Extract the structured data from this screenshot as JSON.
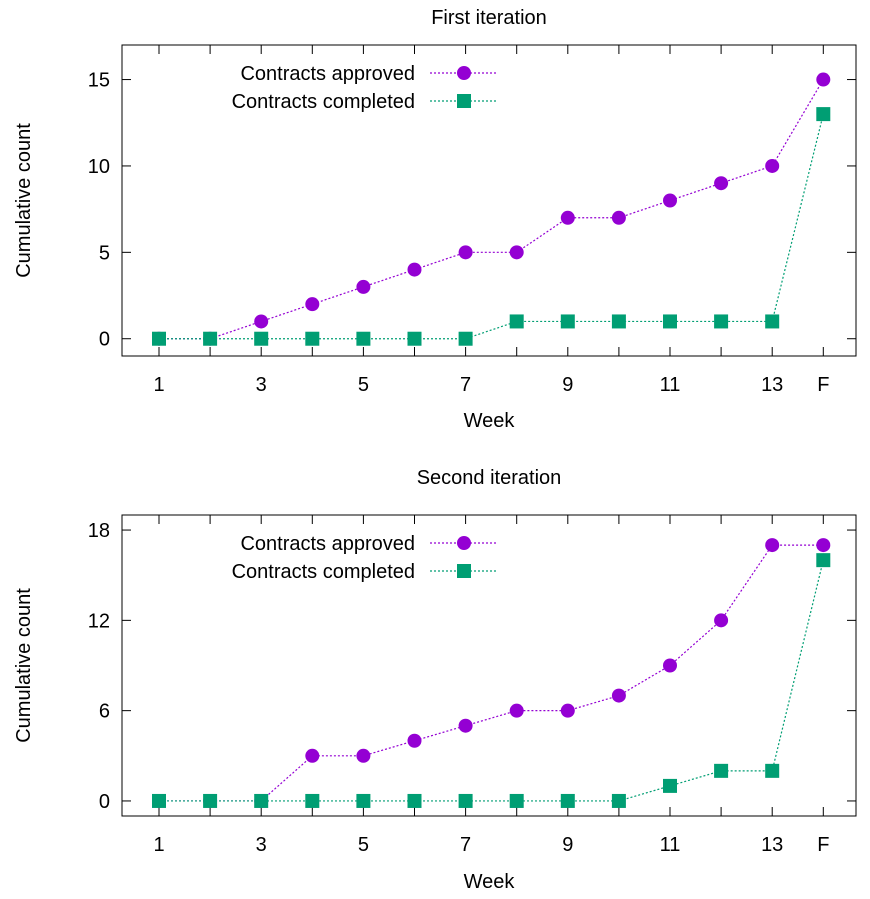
{
  "chart_data": [
    {
      "type": "line",
      "title": "First iteration",
      "xlabel": "Week",
      "ylabel": "Cumulative count",
      "categories": [
        "1",
        "2",
        "3",
        "4",
        "5",
        "6",
        "7",
        "8",
        "9",
        "10",
        "11",
        "12",
        "13",
        "F"
      ],
      "x_tick_labels": [
        "1",
        "3",
        "5",
        "7",
        "9",
        "11",
        "13",
        "F"
      ],
      "y_ticks": [
        0,
        5,
        10,
        15
      ],
      "ylim": [
        -1,
        17
      ],
      "legend_position": "top-right",
      "series": [
        {
          "name": "Contracts approved",
          "color": "#9400d3",
          "marker": "circle",
          "values": [
            0,
            0,
            1,
            2,
            3,
            4,
            5,
            5,
            7,
            7,
            8,
            9,
            10,
            15
          ]
        },
        {
          "name": "Contracts completed",
          "color": "#009e73",
          "marker": "square",
          "values": [
            0,
            0,
            0,
            0,
            0,
            0,
            0,
            1,
            1,
            1,
            1,
            1,
            1,
            13
          ]
        }
      ]
    },
    {
      "type": "line",
      "title": "Second iteration",
      "xlabel": "Week",
      "ylabel": "Cumulative count",
      "categories": [
        "1",
        "2",
        "3",
        "4",
        "5",
        "6",
        "7",
        "8",
        "9",
        "10",
        "11",
        "12",
        "13",
        "F"
      ],
      "x_tick_labels": [
        "1",
        "3",
        "5",
        "7",
        "9",
        "11",
        "13",
        "F"
      ],
      "y_ticks": [
        0,
        6,
        12,
        18
      ],
      "ylim": [
        -1,
        19
      ],
      "legend_position": "top-right",
      "series": [
        {
          "name": "Contracts approved",
          "color": "#9400d3",
          "marker": "circle",
          "values": [
            0,
            0,
            0,
            3,
            3,
            4,
            5,
            6,
            6,
            7,
            9,
            12,
            17,
            17
          ]
        },
        {
          "name": "Contracts completed",
          "color": "#009e73",
          "marker": "square",
          "values": [
            0,
            0,
            0,
            0,
            0,
            0,
            0,
            0,
            0,
            0,
            1,
            2,
            2,
            16
          ]
        }
      ]
    }
  ]
}
